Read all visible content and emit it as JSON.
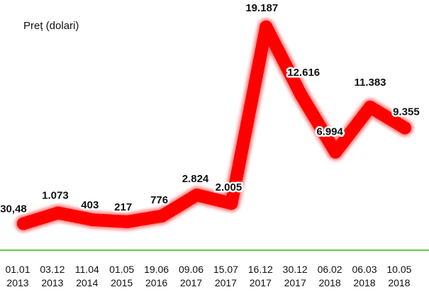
{
  "chart_data": {
    "type": "line",
    "title": "",
    "ylabel": "Preț (dolari)",
    "xlabel": "",
    "categories": [
      [
        "01.01",
        "2013"
      ],
      [
        "03.12",
        "2013"
      ],
      [
        "11.04",
        "2014"
      ],
      [
        "01.05",
        "2015"
      ],
      [
        "19.06",
        "2016"
      ],
      [
        "09.06",
        "2017"
      ],
      [
        "15.07",
        "2017"
      ],
      [
        "16.12",
        "2017"
      ],
      [
        "30.12",
        "2017"
      ],
      [
        "06.02",
        "2018"
      ],
      [
        "06.03",
        "2018"
      ],
      [
        "10.05",
        "2018"
      ]
    ],
    "values": [
      30.48,
      1073,
      403,
      217,
      776,
      2824,
      2005,
      19187,
      12616,
      6994,
      11383,
      9355
    ],
    "value_labels": [
      "30,48",
      "1.073",
      "403",
      "217",
      "776",
      "2.824",
      "2.005",
      "19.187",
      "12.616",
      "6.994",
      "11.383",
      "9.355"
    ],
    "line_color": "#ff0000",
    "axis_color": "#66cc44",
    "grid": false
  }
}
